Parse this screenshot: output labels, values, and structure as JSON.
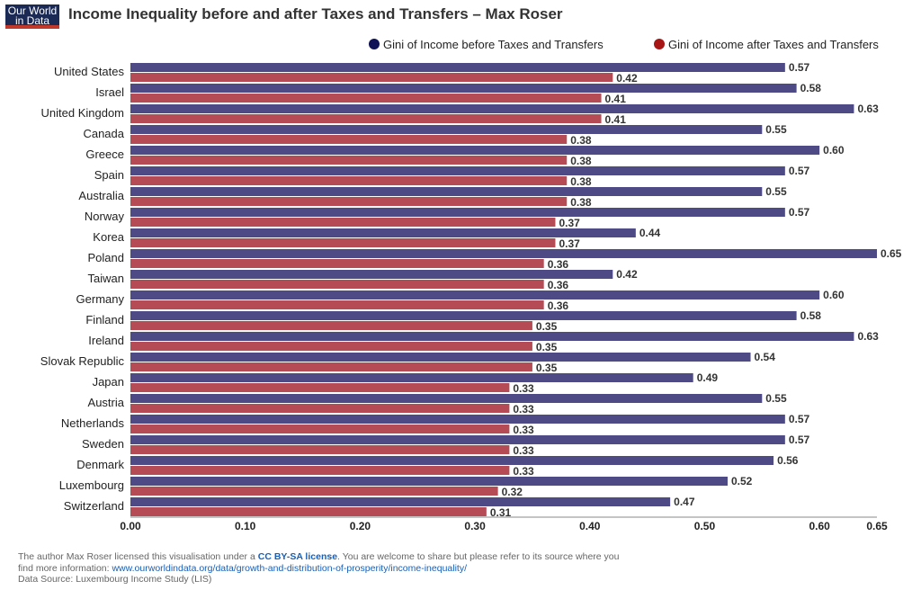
{
  "header": {
    "logo": [
      "Our World",
      "in Data"
    ],
    "title": "Income Inequality before and after Taxes and Transfers – Max Roser"
  },
  "colors": {
    "before": "#4e4a86",
    "after": "#b44b55",
    "before_dot": "#0f1257",
    "after_dot": "#a81515"
  },
  "chart_data": {
    "type": "bar",
    "orientation": "horizontal",
    "categories": [
      "United States",
      "Israel",
      "United Kingdom",
      "Canada",
      "Greece",
      "Spain",
      "Australia",
      "Norway",
      "Korea",
      "Poland",
      "Taiwan",
      "Germany",
      "Finland",
      "Ireland",
      "Slovak Republic",
      "Japan",
      "Austria",
      "Netherlands",
      "Sweden",
      "Denmark",
      "Luxembourg",
      "Switzerland"
    ],
    "series": [
      {
        "name": "Gini of Income before Taxes and Transfers",
        "values": [
          0.57,
          0.58,
          0.63,
          0.55,
          0.6,
          0.57,
          0.55,
          0.57,
          0.44,
          0.65,
          0.42,
          0.6,
          0.58,
          0.63,
          0.54,
          0.49,
          0.55,
          0.57,
          0.57,
          0.56,
          0.52,
          0.47
        ]
      },
      {
        "name": "Gini of Income after Taxes and Transfers",
        "values": [
          0.42,
          0.41,
          0.41,
          0.38,
          0.38,
          0.38,
          0.38,
          0.37,
          0.37,
          0.36,
          0.36,
          0.36,
          0.35,
          0.35,
          0.35,
          0.33,
          0.33,
          0.33,
          0.33,
          0.33,
          0.32,
          0.31
        ]
      }
    ],
    "value_labels": {
      "before": [
        "0.57",
        "0.58",
        "0.63",
        "0.55",
        "0.60",
        "0.57",
        "0.55",
        "0.57",
        "0.44",
        "0.65",
        "0.42",
        "0.60",
        "0.58",
        "0.63",
        "0.54",
        "0.49",
        "0.55",
        "0.57",
        "0.57",
        "0.56",
        "0.52",
        "0.47"
      ],
      "after": [
        "0.42",
        "0.41",
        "0.41",
        "0.38",
        "0.38",
        "0.38",
        "0.38",
        "0.37",
        "0.37",
        "0.36",
        "0.36",
        "0.36",
        "0.35",
        "0.35",
        "0.35",
        "0.33",
        "0.33",
        "0.33",
        "0.33",
        "0.33",
        "0.32",
        "0.31"
      ]
    },
    "xlim": [
      0,
      0.65
    ],
    "xticks": [
      0,
      0.1,
      0.2,
      0.3,
      0.4,
      0.5,
      0.6,
      0.65
    ],
    "xtick_labels": [
      "0.00",
      "0.10",
      "0.20",
      "0.30",
      "0.40",
      "0.50",
      "0.60",
      "0.65"
    ],
    "legend_position": "top-right",
    "grid": false
  },
  "footer": {
    "line1_pre": "The author Max Roser licensed this visualisation under a ",
    "license": "CC BY-SA license",
    "line1_post": ". You are welcome to share but please refer to its source where you",
    "line2_pre": "find more information: ",
    "url": "www.ourworldindata.org/data/growth-and-distribution-of-prosperity/income-inequality/",
    "line3": "Data Source: Luxembourg Income Study (LIS)"
  }
}
